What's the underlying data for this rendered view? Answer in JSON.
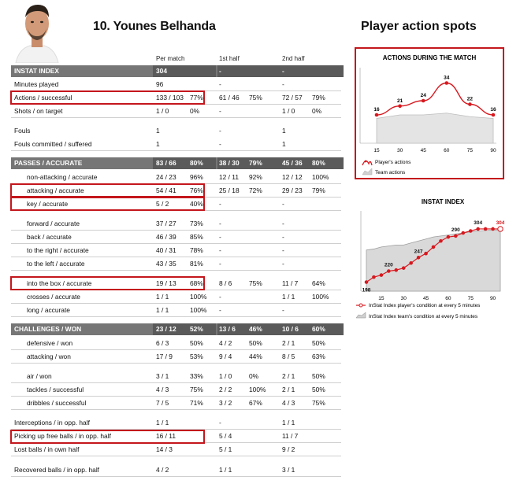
{
  "player_title": "10. Younes Belhanda",
  "right_title": "Player action spots",
  "col_headers": {
    "per_match": "Per match",
    "first_half": "1st half",
    "second_half": "2nd half"
  },
  "rows": [
    {
      "label": "INSTAT INDEX",
      "type": "hdr",
      "pm": "304",
      "pmp": "",
      "h1": "-",
      "h1p": "",
      "h2": "-",
      "h2p": ""
    },
    {
      "label": "Minutes played",
      "type": "row",
      "pm": "96",
      "pmp": "",
      "h1": "-",
      "h1p": "",
      "h2": "-",
      "h2p": ""
    },
    {
      "label": "Actions / successful",
      "type": "row",
      "pm": "133 / 103",
      "pmp": "77%",
      "h1": "61 / 46",
      "h1p": "75%",
      "h2": "72 / 57",
      "h2p": "79%"
    },
    {
      "label": "Shots / on target",
      "type": "row",
      "pm": "1 / 0",
      "pmp": "0%",
      "h1": "-",
      "h1p": "",
      "h2": "1 / 0",
      "h2p": "0%"
    },
    {
      "label": "Fouls",
      "type": "row",
      "pm": "1",
      "pmp": "",
      "h1": "-",
      "h1p": "",
      "h2": "1",
      "h2p": ""
    },
    {
      "label": "Fouls committed / suffered",
      "type": "row",
      "pm": "1",
      "pmp": "",
      "h1": "-",
      "h1p": "",
      "h2": "1",
      "h2p": ""
    },
    {
      "label": "PASSES / ACCURATE",
      "type": "hdr",
      "pm": "83 / 66",
      "pmp": "80%",
      "h1": "38 / 30",
      "h1p": "79%",
      "h2": "45 / 36",
      "h2p": "80%"
    },
    {
      "label": "non-attacking / accurate",
      "type": "row",
      "pm": "24 / 23",
      "pmp": "96%",
      "h1": "12 / 11",
      "h1p": "92%",
      "h2": "12 / 12",
      "h2p": "100%"
    },
    {
      "label": "attacking / accurate",
      "type": "row",
      "pm": "54 / 41",
      "pmp": "76%",
      "h1": "25 / 18",
      "h1p": "72%",
      "h2": "29 / 23",
      "h2p": "79%"
    },
    {
      "label": "key / accurate",
      "type": "row",
      "pm": "5 / 2",
      "pmp": "40%",
      "h1": "-",
      "h1p": "",
      "h2": "-",
      "h2p": ""
    },
    {
      "label": "forward / accurate",
      "type": "row",
      "pm": "37 / 27",
      "pmp": "73%",
      "h1": "-",
      "h1p": "",
      "h2": "-",
      "h2p": ""
    },
    {
      "label": "back / accurate",
      "type": "row",
      "pm": "46 / 39",
      "pmp": "85%",
      "h1": "-",
      "h1p": "",
      "h2": "-",
      "h2p": ""
    },
    {
      "label": "to the right / accurate",
      "type": "row",
      "pm": "40 / 31",
      "pmp": "78%",
      "h1": "-",
      "h1p": "",
      "h2": "-",
      "h2p": ""
    },
    {
      "label": "to the left / accurate",
      "type": "row",
      "pm": "43 / 35",
      "pmp": "81%",
      "h1": "-",
      "h1p": "",
      "h2": "-",
      "h2p": ""
    },
    {
      "label": "into the box / accurate",
      "type": "row",
      "pm": "19 / 13",
      "pmp": "68%",
      "h1": "8 / 6",
      "h1p": "75%",
      "h2": "11 / 7",
      "h2p": "64%"
    },
    {
      "label": "crosses / accurate",
      "type": "row",
      "pm": "1 / 1",
      "pmp": "100%",
      "h1": "-",
      "h1p": "",
      "h2": "1 / 1",
      "h2p": "100%"
    },
    {
      "label": "long / accurate",
      "type": "row",
      "pm": "1 / 1",
      "pmp": "100%",
      "h1": "-",
      "h1p": "",
      "h2": "-",
      "h2p": ""
    },
    {
      "label": "CHALLENGES / WON",
      "type": "hdr",
      "pm": "23 / 12",
      "pmp": "52%",
      "h1": "13 / 6",
      "h1p": "46%",
      "h2": "10 / 6",
      "h2p": "60%"
    },
    {
      "label": "defensive / won",
      "type": "row",
      "pm": "6 / 3",
      "pmp": "50%",
      "h1": "4 / 2",
      "h1p": "50%",
      "h2": "2 / 1",
      "h2p": "50%"
    },
    {
      "label": "attacking / won",
      "type": "row",
      "pm": "17 / 9",
      "pmp": "53%",
      "h1": "9 / 4",
      "h1p": "44%",
      "h2": "8 / 5",
      "h2p": "63%"
    },
    {
      "label": "air / won",
      "type": "row",
      "pm": "3 / 1",
      "pmp": "33%",
      "h1": "1 / 0",
      "h1p": "0%",
      "h2": "2 / 1",
      "h2p": "50%"
    },
    {
      "label": "tackles / successful",
      "type": "row",
      "pm": "4 / 3",
      "pmp": "75%",
      "h1": "2 / 2",
      "h1p": "100%",
      "h2": "2 / 1",
      "h2p": "50%"
    },
    {
      "label": "dribbles / successful",
      "type": "row",
      "pm": "7 / 5",
      "pmp": "71%",
      "h1": "3 / 2",
      "h1p": "67%",
      "h2": "4 / 3",
      "h2p": "75%"
    },
    {
      "label": "Interceptions / in opp. half",
      "type": "row",
      "pm": "1 / 1",
      "pmp": "",
      "h1": "-",
      "h1p": "",
      "h2": "1 / 1",
      "h2p": ""
    },
    {
      "label": "Picking up free balls / in opp. half",
      "type": "row",
      "pm": "16 / 11",
      "pmp": "",
      "h1": "5 / 4",
      "h1p": "",
      "h2": "11 / 7",
      "h2p": ""
    },
    {
      "label": "Lost balls / in own half",
      "type": "row",
      "pm": "14 / 3",
      "pmp": "",
      "h1": "5 / 1",
      "h1p": "",
      "h2": "9 / 2",
      "h2p": ""
    },
    {
      "label": "Recovered balls / in opp. half",
      "type": "row",
      "pm": "4 / 2",
      "pmp": "",
      "h1": "1 / 1",
      "h1p": "",
      "h2": "3 / 1",
      "h2p": ""
    }
  ],
  "chart_data": [
    {
      "type": "line",
      "title": "ACTIONS DURING THE MATCH",
      "x": [
        15,
        30,
        45,
        60,
        75,
        90
      ],
      "series": [
        {
          "name": "Player's actions",
          "color": "#d7191f",
          "values": [
            16,
            21,
            24,
            34,
            22,
            16
          ]
        },
        {
          "name": "Team actions",
          "color": "#bdbdbd",
          "values": [
            14,
            16,
            16,
            17,
            15,
            14
          ]
        }
      ],
      "ylim": [
        0,
        40
      ],
      "legend": "bottom-left"
    },
    {
      "type": "line",
      "title": "INSTAT INDEX",
      "x": [
        5,
        10,
        15,
        20,
        25,
        30,
        35,
        40,
        45,
        50,
        55,
        60,
        65,
        70,
        75,
        80,
        85,
        90,
        95
      ],
      "x_ticks": [
        15,
        30,
        45,
        60,
        75,
        90
      ],
      "series": [
        {
          "name": "InStat Index player's condition at every 5 minutes",
          "color": "#d7191f",
          "values": [
            198,
            208,
            212,
            220,
            222,
            226,
            236,
            247,
            255,
            268,
            280,
            288,
            290,
            296,
            300,
            304,
            304,
            304,
            304
          ],
          "labels": {
            "0": "198",
            "3": "220",
            "7": "247",
            "12": "290",
            "15": "304",
            "18": "304"
          }
        },
        {
          "name": "InStat Index team's condition at every 5 minutes",
          "color": "#9e9e9e",
          "values": [
            262,
            264,
            268,
            270,
            272,
            272,
            276,
            280,
            284,
            288,
            290,
            292,
            294,
            296,
            298,
            300,
            301,
            302,
            302
          ]
        }
      ],
      "ylim": [
        180,
        340
      ],
      "legend": "bottom"
    }
  ]
}
